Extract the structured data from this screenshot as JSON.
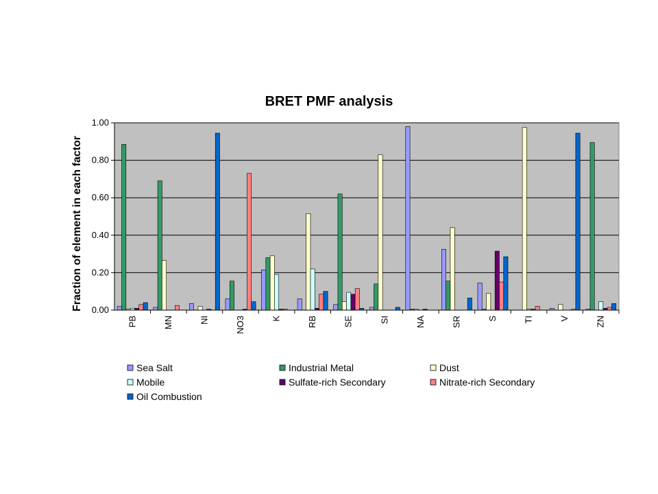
{
  "chart_data": {
    "type": "bar",
    "title": "BRET PMF analysis",
    "xlabel": "",
    "ylabel": "Fraction of element in each factor",
    "ylim": [
      0,
      1.0
    ],
    "yticks": [
      "0.00",
      "0.20",
      "0.40",
      "0.60",
      "0.80",
      "1.00"
    ],
    "grid": true,
    "legend_position": "bottom",
    "categories": [
      "PB",
      "MN",
      "NI",
      "NO3",
      "K",
      "RB",
      "SE",
      "SI",
      "NA",
      "SR",
      "S",
      "TI",
      "V",
      "ZN"
    ],
    "series": [
      {
        "name": "Sea Salt",
        "color": "#9999ff",
        "values": [
          0.02,
          0.015,
          0.035,
          0.06,
          0.215,
          0.06,
          0.03,
          0.015,
          0.98,
          0.325,
          0.145,
          0.0,
          0.01,
          0.005
        ]
      },
      {
        "name": "Industrial Metal",
        "color": "#339966",
        "values": [
          0.885,
          0.69,
          0.0,
          0.155,
          0.28,
          0.0,
          0.62,
          0.14,
          0.005,
          0.155,
          0.005,
          0.0,
          0.0,
          0.895
        ]
      },
      {
        "name": "Dust",
        "color": "#ffffcc",
        "values": [
          0.005,
          0.265,
          0.02,
          0.0,
          0.29,
          0.515,
          0.045,
          0.83,
          0.005,
          0.44,
          0.09,
          0.975,
          0.03,
          0.0
        ]
      },
      {
        "name": "Mobile",
        "color": "#ccffff",
        "values": [
          0.01,
          0.0,
          0.0,
          0.0,
          0.19,
          0.22,
          0.095,
          0.0,
          0.0,
          0.0,
          0.0,
          0.005,
          0.0,
          0.045
        ]
      },
      {
        "name": "Sulfate-rich Secondary",
        "color": "#660066",
        "values": [
          0.01,
          0.0,
          0.005,
          0.005,
          0.005,
          0.01,
          0.085,
          0.0,
          0.005,
          0.0,
          0.315,
          0.005,
          0.0,
          0.01
        ]
      },
      {
        "name": "Nitrate-rich Secondary",
        "color": "#ff8080",
        "values": [
          0.03,
          0.025,
          0.0,
          0.73,
          0.005,
          0.085,
          0.115,
          0.0,
          0.0,
          0.0,
          0.15,
          0.02,
          0.005,
          0.015
        ]
      },
      {
        "name": "Oil Combustion",
        "color": "#0066cc",
        "values": [
          0.04,
          0.0,
          0.945,
          0.045,
          0.0,
          0.1,
          0.01,
          0.015,
          0.0,
          0.065,
          0.285,
          0.0,
          0.945,
          0.035
        ]
      }
    ]
  },
  "colors": {
    "plot_background": "#c0c0c0",
    "gridline": "#000000",
    "bar_outline": "#000000"
  }
}
